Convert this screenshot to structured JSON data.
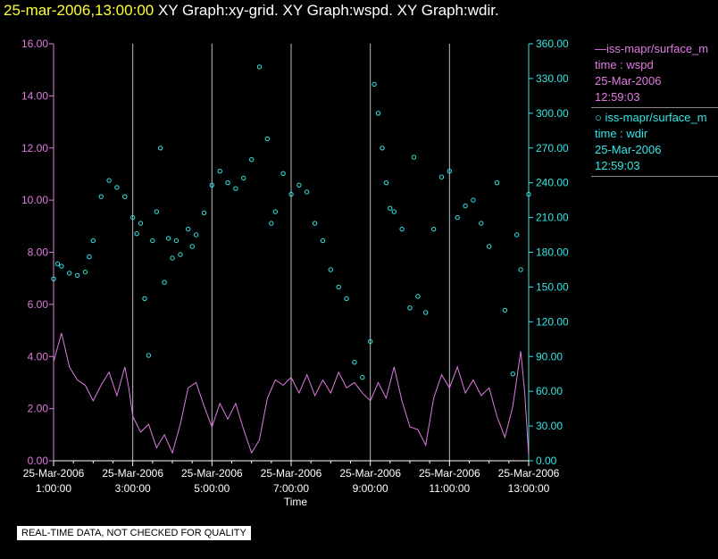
{
  "title": {
    "timestamp": "25-mar-2006,13:00:00",
    "rest": " XY Graph:xy-grid.  XY Graph:wspd.  XY Graph:wdir."
  },
  "legend": {
    "wspd": {
      "line1": "—iss-mapr/surface_m",
      "line2": "time : wspd",
      "line3": "25-Mar-2006",
      "line4": "12:59:03"
    },
    "wdir": {
      "line1": "○ iss-mapr/surface_m",
      "line2": "time : wdir",
      "line3": "25-Mar-2006",
      "line4": "12:59:03"
    }
  },
  "notice": "REAL-TIME DATA, NOT CHECKED FOR QUALITY",
  "colors": {
    "wspd": "#e07be0",
    "wdir": "#33e6e6",
    "grid": "#bbbbbb",
    "axis_left": "#e07be0",
    "axis_right": "#33e6e6"
  },
  "chart_data": {
    "type": "line+scatter",
    "xlabel": "Time",
    "xlim": [
      1.0,
      13.0
    ],
    "x_ticks": [
      {
        "x": 1,
        "date": "25-Mar-2006",
        "time": "1:00:00"
      },
      {
        "x": 3,
        "date": "25-Mar-2006",
        "time": "3:00:00"
      },
      {
        "x": 5,
        "date": "25-Mar-2006",
        "time": "5:00:00"
      },
      {
        "x": 7,
        "date": "25-Mar-2006",
        "time": "7:00:00"
      },
      {
        "x": 9,
        "date": "25-Mar-2006",
        "time": "9:00:00"
      },
      {
        "x": 11,
        "date": "25-Mar-2006",
        "time": "11:00:00"
      },
      {
        "x": 13,
        "date": "25-Mar-2006",
        "time": "13:00:00"
      }
    ],
    "grid_x": [
      3,
      5,
      7,
      9,
      11,
      13
    ],
    "left_axis": {
      "ylim": [
        0,
        16
      ],
      "ticks": [
        "0.00",
        "2.00",
        "4.00",
        "6.00",
        "8.00",
        "10.00",
        "12.00",
        "14.00",
        "16.00"
      ]
    },
    "right_axis": {
      "ylim": [
        0,
        360
      ],
      "ticks": [
        "0.00",
        "30.00",
        "60.00",
        "90.00",
        "120.00",
        "150.00",
        "180.00",
        "210.00",
        "240.00",
        "270.00",
        "300.00",
        "330.00",
        "360.00"
      ]
    },
    "series": [
      {
        "name": "time : wspd",
        "kind": "line",
        "axis": "left",
        "points": [
          [
            1.0,
            3.8
          ],
          [
            1.2,
            4.9
          ],
          [
            1.4,
            3.6
          ],
          [
            1.6,
            3.1
          ],
          [
            1.8,
            2.9
          ],
          [
            2.0,
            2.3
          ],
          [
            2.2,
            2.9
          ],
          [
            2.4,
            3.4
          ],
          [
            2.6,
            2.5
          ],
          [
            2.8,
            3.6
          ],
          [
            2.9,
            2.8
          ],
          [
            3.0,
            1.7
          ],
          [
            3.2,
            1.1
          ],
          [
            3.4,
            1.4
          ],
          [
            3.6,
            0.5
          ],
          [
            3.8,
            1.0
          ],
          [
            4.0,
            0.3
          ],
          [
            4.2,
            1.4
          ],
          [
            4.4,
            2.8
          ],
          [
            4.6,
            3.0
          ],
          [
            4.8,
            2.1
          ],
          [
            5.0,
            1.3
          ],
          [
            5.2,
            2.2
          ],
          [
            5.4,
            1.6
          ],
          [
            5.6,
            2.2
          ],
          [
            5.8,
            1.2
          ],
          [
            6.0,
            0.3
          ],
          [
            6.2,
            0.8
          ],
          [
            6.4,
            2.4
          ],
          [
            6.6,
            3.1
          ],
          [
            6.8,
            2.9
          ],
          [
            7.0,
            3.2
          ],
          [
            7.2,
            2.6
          ],
          [
            7.4,
            3.3
          ],
          [
            7.6,
            2.5
          ],
          [
            7.8,
            3.1
          ],
          [
            8.0,
            2.6
          ],
          [
            8.2,
            3.4
          ],
          [
            8.4,
            2.8
          ],
          [
            8.6,
            3.0
          ],
          [
            8.8,
            2.6
          ],
          [
            9.0,
            2.3
          ],
          [
            9.2,
            3.0
          ],
          [
            9.4,
            2.4
          ],
          [
            9.6,
            3.6
          ],
          [
            9.8,
            2.3
          ],
          [
            10.0,
            1.3
          ],
          [
            10.2,
            1.2
          ],
          [
            10.4,
            0.6
          ],
          [
            10.6,
            2.4
          ],
          [
            10.8,
            3.3
          ],
          [
            11.0,
            2.8
          ],
          [
            11.2,
            3.6
          ],
          [
            11.4,
            2.6
          ],
          [
            11.6,
            3.1
          ],
          [
            11.8,
            2.5
          ],
          [
            12.0,
            2.8
          ],
          [
            12.2,
            1.7
          ],
          [
            12.4,
            0.9
          ],
          [
            12.6,
            2.1
          ],
          [
            12.8,
            4.2
          ],
          [
            12.9,
            2.6
          ],
          [
            13.0,
            0.2
          ]
        ]
      },
      {
        "name": "time : wdir",
        "kind": "scatter",
        "axis": "right",
        "points": [
          [
            1.0,
            157
          ],
          [
            1.1,
            170
          ],
          [
            1.2,
            168
          ],
          [
            1.4,
            162
          ],
          [
            1.6,
            160
          ],
          [
            1.8,
            163
          ],
          [
            1.9,
            176
          ],
          [
            2.0,
            190
          ],
          [
            2.2,
            228
          ],
          [
            2.4,
            242
          ],
          [
            2.6,
            236
          ],
          [
            2.8,
            228
          ],
          [
            3.0,
            210
          ],
          [
            3.1,
            196
          ],
          [
            3.2,
            205
          ],
          [
            3.3,
            140
          ],
          [
            3.4,
            91
          ],
          [
            3.5,
            190
          ],
          [
            3.6,
            215
          ],
          [
            3.7,
            270
          ],
          [
            3.8,
            154
          ],
          [
            3.9,
            192
          ],
          [
            4.0,
            175
          ],
          [
            4.1,
            190
          ],
          [
            4.2,
            178
          ],
          [
            4.4,
            200
          ],
          [
            4.5,
            185
          ],
          [
            4.6,
            195
          ],
          [
            4.8,
            214
          ],
          [
            5.0,
            238
          ],
          [
            5.2,
            250
          ],
          [
            5.4,
            240
          ],
          [
            5.6,
            235
          ],
          [
            5.8,
            244
          ],
          [
            6.0,
            260
          ],
          [
            6.2,
            340
          ],
          [
            6.4,
            278
          ],
          [
            6.5,
            205
          ],
          [
            6.6,
            215
          ],
          [
            6.8,
            248
          ],
          [
            7.0,
            230
          ],
          [
            7.2,
            238
          ],
          [
            7.4,
            232
          ],
          [
            7.6,
            205
          ],
          [
            7.8,
            190
          ],
          [
            8.0,
            165
          ],
          [
            8.2,
            150
          ],
          [
            8.4,
            140
          ],
          [
            8.6,
            85
          ],
          [
            8.8,
            72
          ],
          [
            9.0,
            103
          ],
          [
            9.1,
            325
          ],
          [
            9.2,
            300
          ],
          [
            9.3,
            270
          ],
          [
            9.4,
            240
          ],
          [
            9.5,
            218
          ],
          [
            9.6,
            215
          ],
          [
            9.8,
            200
          ],
          [
            10.0,
            132
          ],
          [
            10.1,
            262
          ],
          [
            10.2,
            142
          ],
          [
            10.4,
            128
          ],
          [
            10.6,
            200
          ],
          [
            10.8,
            245
          ],
          [
            11.0,
            250
          ],
          [
            11.2,
            210
          ],
          [
            11.4,
            220
          ],
          [
            11.6,
            225
          ],
          [
            11.8,
            205
          ],
          [
            12.0,
            185
          ],
          [
            12.2,
            240
          ],
          [
            12.4,
            130
          ],
          [
            12.6,
            75
          ],
          [
            12.7,
            195
          ],
          [
            12.8,
            165
          ],
          [
            13.0,
            230
          ]
        ]
      }
    ]
  }
}
